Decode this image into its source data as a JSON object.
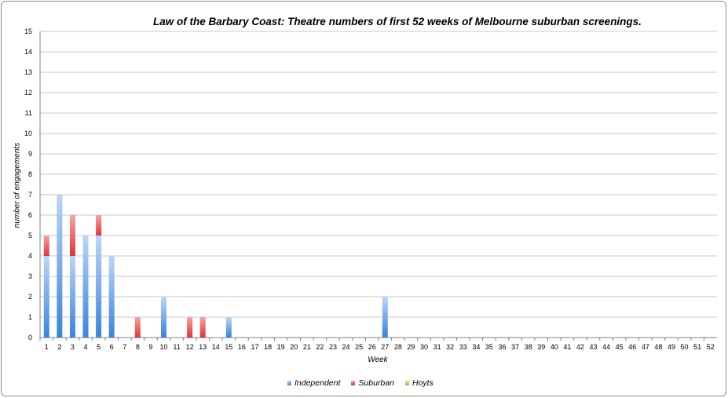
{
  "chart_data": {
    "type": "bar",
    "stacked": true,
    "title": "Law of the Barbary Coast: Theatre numbers of first 52 weeks of Melbourne suburban screenings.",
    "xlabel": "Week",
    "ylabel": "number of engagements",
    "ylim": [
      0,
      15
    ],
    "yticks": [
      "0",
      "1",
      "2",
      "3",
      "4",
      "5",
      "6",
      "7",
      "8",
      "9",
      "10",
      "11",
      "12",
      "13",
      "14",
      "15"
    ],
    "categories": [
      "1",
      "2",
      "3",
      "4",
      "5",
      "6",
      "7",
      "8",
      "9",
      "10",
      "11",
      "12",
      "13",
      "14",
      "15",
      "16",
      "17",
      "18",
      "19",
      "20",
      "21",
      "22",
      "23",
      "24",
      "25",
      "26",
      "27",
      "28",
      "29",
      "30",
      "31",
      "32",
      "33",
      "34",
      "35",
      "36",
      "37",
      "38",
      "39",
      "40",
      "41",
      "42",
      "43",
      "44",
      "45",
      "46",
      "47",
      "48",
      "49",
      "50",
      "51",
      "52"
    ],
    "series": [
      {
        "name": "Independent",
        "color": "#4a90e2",
        "values": [
          4,
          7,
          4,
          5,
          5,
          4,
          0,
          0,
          0,
          2,
          0,
          0,
          0,
          0,
          1,
          0,
          0,
          0,
          0,
          0,
          0,
          0,
          0,
          0,
          0,
          0,
          2,
          0,
          0,
          0,
          0,
          0,
          0,
          0,
          0,
          0,
          0,
          0,
          0,
          0,
          0,
          0,
          0,
          0,
          0,
          0,
          0,
          0,
          0,
          0,
          0,
          0
        ]
      },
      {
        "name": "Suburban",
        "color": "#e84848",
        "values": [
          1,
          0,
          2,
          0,
          1,
          0,
          0,
          1,
          0,
          0,
          0,
          1,
          1,
          0,
          0,
          0,
          0,
          0,
          0,
          0,
          0,
          0,
          0,
          0,
          0,
          0,
          0,
          0,
          0,
          0,
          0,
          0,
          0,
          0,
          0,
          0,
          0,
          0,
          0,
          0,
          0,
          0,
          0,
          0,
          0,
          0,
          0,
          0,
          0,
          0,
          0,
          0
        ]
      },
      {
        "name": "Hoyts",
        "color": "#8fd44a",
        "values": [
          0,
          0,
          0,
          0,
          0,
          0,
          0,
          0,
          0,
          0,
          0,
          0,
          0,
          0,
          0,
          0,
          0,
          0,
          0,
          0,
          0,
          0,
          0,
          0,
          0,
          0,
          0,
          0,
          0,
          0,
          0,
          0,
          0,
          0,
          0,
          0,
          0,
          0,
          0,
          0,
          0,
          0,
          0,
          0,
          0,
          0,
          0,
          0,
          0,
          0,
          0,
          0
        ]
      }
    ],
    "grid": true,
    "legend_position": "bottom"
  }
}
